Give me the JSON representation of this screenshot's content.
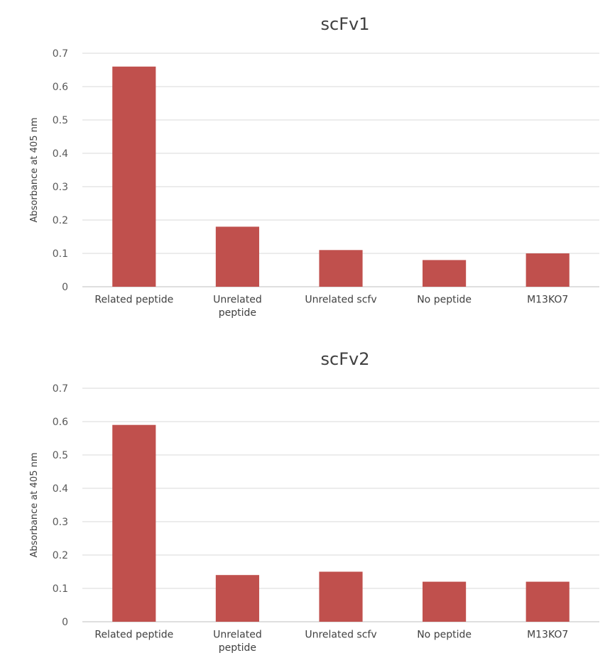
{
  "chart_data": [
    {
      "type": "bar",
      "title": "scFv1",
      "ylabel": "Absorbance at 405 nm",
      "xlabel": "",
      "ylim": [
        0,
        0.7
      ],
      "yticks": [
        "0",
        "0.1",
        "0.2",
        "0.3",
        "0.4",
        "0.5",
        "0.6",
        "0.7"
      ],
      "categories": [
        [
          "Related peptide"
        ],
        [
          "Unrelated",
          "peptide"
        ],
        [
          "Unrelated scfv"
        ],
        [
          "No peptide"
        ],
        [
          "M13KO7"
        ]
      ],
      "values": [
        0.66,
        0.18,
        0.11,
        0.08,
        0.1
      ],
      "bar_color": "#c0504d",
      "grid": true,
      "legend": "none"
    },
    {
      "type": "bar",
      "title": "scFv2",
      "ylabel": "Absorbance at 405 nm",
      "xlabel": "",
      "ylim": [
        0,
        0.7
      ],
      "yticks": [
        "0",
        "0.1",
        "0.2",
        "0.3",
        "0.4",
        "0.5",
        "0.6",
        "0.7"
      ],
      "categories": [
        [
          "Related peptide"
        ],
        [
          "Unrelated",
          "peptide"
        ],
        [
          "Unrelated scfv"
        ],
        [
          "No peptide"
        ],
        [
          "M13KO7"
        ]
      ],
      "values": [
        0.59,
        0.14,
        0.15,
        0.12,
        0.12
      ],
      "bar_color": "#c0504d",
      "grid": true,
      "legend": "none"
    }
  ]
}
